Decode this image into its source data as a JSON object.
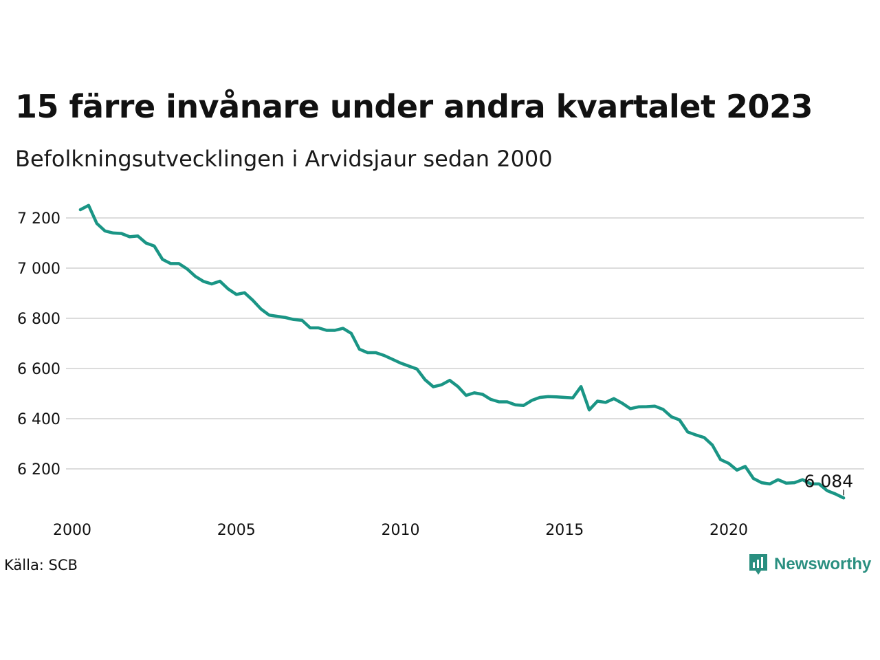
{
  "title": "15 färre invånare under andra kvartalet 2023",
  "subtitle": "Befolkningsutvecklingen i Arvidsjaur sedan 2000",
  "source": "Källa: SCB",
  "brand": {
    "name": "Newsworthy",
    "color": "#2a8f80",
    "icon": "newsworthy-logo-icon"
  },
  "colors": {
    "line": "#1a9585",
    "grid": "#dcdcdc",
    "axis_text": "#111111"
  },
  "chart_data": {
    "type": "line",
    "title": "15 färre invånare under andra kvartalet 2023",
    "subtitle": "Befolkningsutvecklingen i Arvidsjaur sedan 2000",
    "xlabel": "",
    "ylabel": "",
    "xlim": [
      2000,
      2023.5
    ],
    "ylim": [
      6070,
      7250
    ],
    "x_ticks": [
      2000,
      2005,
      2010,
      2015,
      2020
    ],
    "x_tick_labels": [
      "2000",
      "2005",
      "2010",
      "2015",
      "2020"
    ],
    "y_ticks": [
      6200,
      6400,
      6600,
      6800,
      7000,
      7200
    ],
    "y_tick_labels": [
      "6 200",
      "6 400",
      "6 600",
      "6 800",
      "7 000",
      "7 200"
    ],
    "grid": "horizontal",
    "last_label": "6 084",
    "x": [
      2000.25,
      2000.5,
      2000.75,
      2001.0,
      2001.25,
      2001.5,
      2001.75,
      2002.0,
      2002.25,
      2002.5,
      2002.75,
      2003.0,
      2003.25,
      2003.5,
      2003.75,
      2004.0,
      2004.25,
      2004.5,
      2004.75,
      2005.0,
      2005.25,
      2005.5,
      2005.75,
      2006.0,
      2006.25,
      2006.5,
      2006.75,
      2007.0,
      2007.25,
      2007.5,
      2007.75,
      2008.0,
      2008.25,
      2008.5,
      2008.75,
      2009.0,
      2009.25,
      2009.5,
      2009.75,
      2010.0,
      2010.25,
      2010.5,
      2010.75,
      2011.0,
      2011.25,
      2011.5,
      2011.75,
      2012.0,
      2012.25,
      2012.5,
      2012.75,
      2013.0,
      2013.25,
      2013.5,
      2013.75,
      2014.0,
      2014.25,
      2014.5,
      2014.75,
      2015.0,
      2015.25,
      2015.5,
      2015.75,
      2016.0,
      2016.25,
      2016.5,
      2016.75,
      2017.0,
      2017.25,
      2017.5,
      2017.75,
      2018.0,
      2018.25,
      2018.5,
      2018.75,
      2019.0,
      2019.25,
      2019.5,
      2019.75,
      2020.0,
      2020.25,
      2020.5,
      2020.75,
      2021.0,
      2021.25,
      2021.5,
      2021.75,
      2022.0,
      2022.25,
      2022.5,
      2022.75,
      2023.0,
      2023.25,
      2023.5
    ],
    "series": [
      {
        "values": [
          7233,
          7250,
          7178,
          7148,
          7140,
          7138,
          7125,
          7128,
          7100,
          7088,
          7035,
          7018,
          7018,
          6997,
          6967,
          6947,
          6937,
          6948,
          6917,
          6895,
          6902,
          6872,
          6837,
          6813,
          6808,
          6803,
          6795,
          6792,
          6762,
          6762,
          6752,
          6752,
          6760,
          6740,
          6677,
          6663,
          6663,
          6652,
          6637,
          6622,
          6610,
          6598,
          6555,
          6527,
          6535,
          6553,
          6528,
          6493,
          6503,
          6497,
          6477,
          6467,
          6467,
          6455,
          6453,
          6473,
          6485,
          6488,
          6487,
          6485,
          6483,
          6528,
          6435,
          6470,
          6465,
          6480,
          6462,
          6440,
          6447,
          6448,
          6450,
          6437,
          6408,
          6395,
          6347,
          6335,
          6325,
          6295,
          6237,
          6222,
          6195,
          6210,
          6162,
          6145,
          6140,
          6157,
          6143,
          6145,
          6157,
          6140,
          6140,
          6113,
          6100,
          6084
        ]
      }
    ]
  }
}
